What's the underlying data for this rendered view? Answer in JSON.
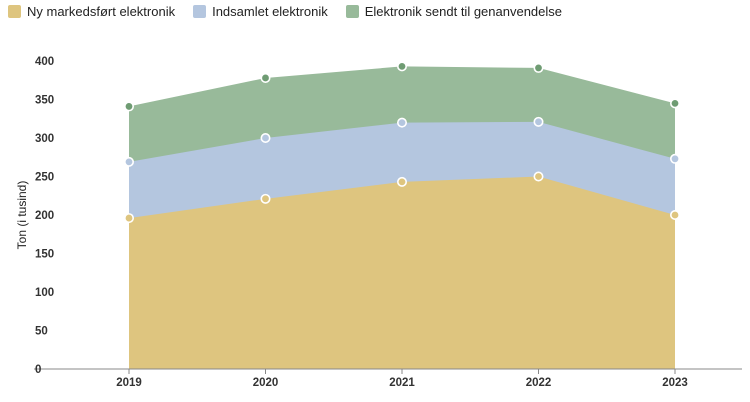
{
  "chart_data": {
    "type": "area",
    "stacking": "overlapping",
    "categories": [
      "2019",
      "2020",
      "2021",
      "2022",
      "2023"
    ],
    "series": [
      {
        "name": "Ny markedsført elektronik",
        "color": "#DEC57F",
        "values": [
          196,
          221,
          243,
          250,
          200
        ]
      },
      {
        "name": "Indsamlet elektronik",
        "color": "#B4C6DF",
        "values": [
          269,
          300,
          320,
          321,
          273
        ]
      },
      {
        "name": "Elektronik sendt til genanvendelse",
        "color": "#98BA9A",
        "values": [
          341,
          378,
          393,
          391,
          345
        ]
      }
    ],
    "ylabel": "Ton (i tusind)",
    "xlabel": "",
    "ylim": [
      0,
      400
    ],
    "yticks": [
      0,
      50,
      100,
      150,
      200,
      250,
      300,
      350,
      400
    ],
    "grid": false,
    "legend_position": "top-left",
    "marker_stroke_colors": [
      "#ffffff",
      "#ffffff",
      "#ffffff"
    ],
    "marker_fill_colors": [
      "#DEC57F",
      "#B4C6DF",
      "#6F9C73"
    ]
  }
}
